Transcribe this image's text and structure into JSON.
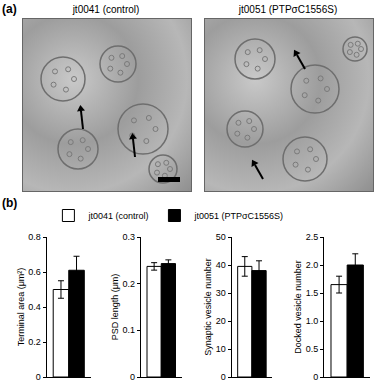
{
  "panel_labels": [
    "(a)",
    "(b)"
  ],
  "micrographs": [
    "jt0041 (control)",
    "jt0051 (PTPσC1556S)"
  ],
  "chart_data": [
    {
      "type": "bar",
      "y_label": "Terminal area (μm²)",
      "categories": [
        null
      ],
      "series": [
        {
          "name": "jt0041 (control)",
          "color": "#ffffff",
          "values": [
            0.5
          ],
          "errors": [
            0.05
          ]
        },
        {
          "name": "jt0051 (PTPσC1556S)",
          "color": "#000000",
          "values": [
            0.61
          ],
          "errors": [
            0.08
          ]
        }
      ],
      "ylim": [
        0,
        0.8
      ],
      "yticks": [
        0,
        0.2,
        0.4,
        0.6,
        0.8
      ],
      "tick_labels": "y",
      "legend": "top"
    },
    {
      "type": "bar",
      "y_label": "PSD length (μm)",
      "categories": [
        null
      ],
      "series": [
        {
          "name": "jt0041 (control)",
          "color": "#ffffff",
          "values": [
            0.237
          ],
          "errors": [
            0.008
          ]
        },
        {
          "name": "jt0051 (PTPσC1556S)",
          "color": "#000000",
          "values": [
            0.243
          ],
          "errors": [
            0.008
          ]
        }
      ],
      "ylim": [
        0,
        0.3
      ],
      "yticks": [
        0,
        0.1,
        0.2,
        0.3
      ],
      "tick_labels": "y"
    },
    {
      "type": "bar",
      "y_label": "Synaptic vesicle number",
      "categories": [
        null
      ],
      "series": [
        {
          "name": "jt0041 (control)",
          "color": "#ffffff",
          "values": [
            39.5
          ],
          "errors": [
            3.5
          ]
        },
        {
          "name": "jt0051 (PTPσC1556S)",
          "color": "#000000",
          "values": [
            38
          ],
          "errors": [
            3.5
          ]
        }
      ],
      "ylim": [
        0,
        50
      ],
      "yticks": [
        0,
        10,
        20,
        30,
        40,
        50
      ],
      "tick_labels": "y"
    },
    {
      "type": "bar",
      "y_label": "Docked vesicle number",
      "categories": [
        null
      ],
      "series": [
        {
          "name": "jt0041 (control)",
          "color": "#ffffff",
          "values": [
            1.65
          ],
          "errors": [
            0.15
          ]
        },
        {
          "name": "jt0051 (PTPσC1556S)",
          "color": "#000000",
          "values": [
            2.0
          ],
          "errors": [
            0.2
          ]
        }
      ],
      "ylim": [
        0,
        2.5
      ],
      "yticks": [
        0,
        0.5,
        {
          "value": 1,
          "label": "1.0"
        },
        1.5,
        {
          "value": 2,
          "label": "2.0"
        },
        2.5
      ],
      "tick_labels": "y"
    }
  ]
}
